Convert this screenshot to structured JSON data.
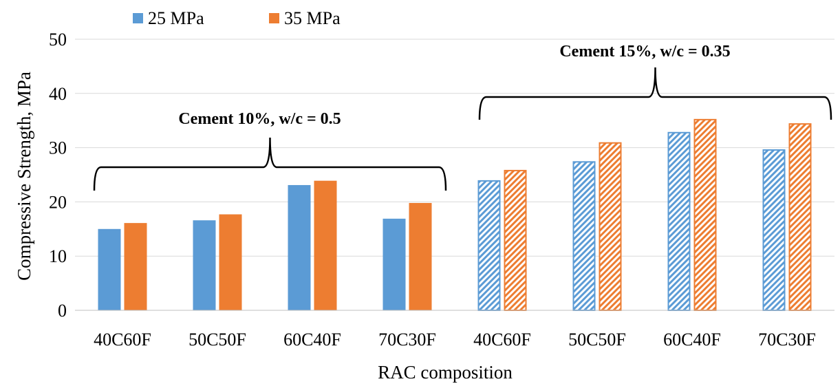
{
  "chart_data": {
    "type": "bar",
    "xlabel": "RAC composition",
    "ylabel": "Compressive Strength, MPa",
    "ylim": [
      0,
      50
    ],
    "yticks": [
      0,
      10,
      20,
      30,
      40,
      50
    ],
    "grid": true,
    "legend_position": "top-left",
    "categories": [
      "40C60F",
      "50C50F",
      "60C40F",
      "70C30F",
      "40C60F",
      "50C50F",
      "60C40F",
      "70C30F"
    ],
    "series": [
      {
        "name": "25 MPa",
        "color": "#5B9BD5",
        "values": [
          15.0,
          16.6,
          23.1,
          16.9,
          24.0,
          27.5,
          32.9,
          29.7
        ]
      },
      {
        "name": "35 MPa",
        "color": "#ED7D31",
        "values": [
          16.1,
          17.7,
          23.9,
          19.8,
          25.9,
          31.0,
          35.3,
          34.5
        ]
      }
    ],
    "hatched_categories": [
      4,
      5,
      6,
      7
    ],
    "groups": [
      {
        "label": "Cement 10%,  w/c = 0.5",
        "first_category": 0,
        "last_category": 3
      },
      {
        "label": "Cement 15%,  w/c = 0.35",
        "first_category": 4,
        "last_category": 7
      }
    ]
  }
}
